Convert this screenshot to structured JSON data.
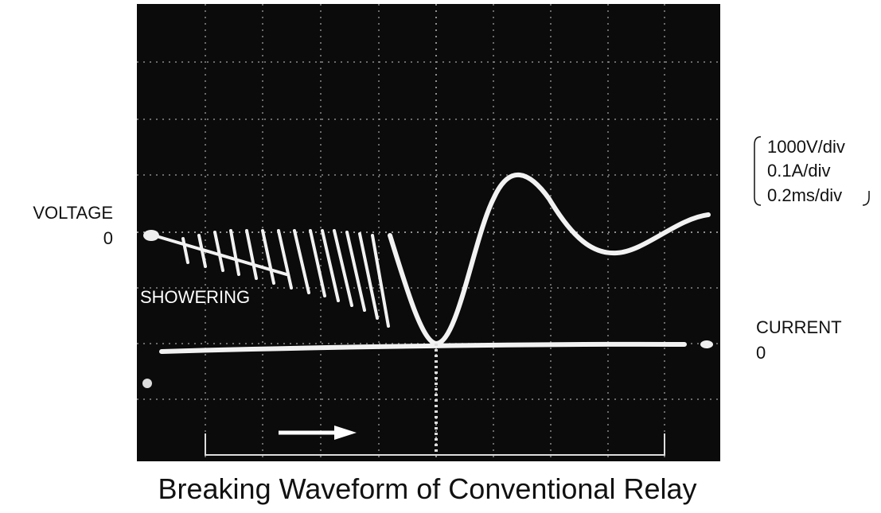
{
  "labels": {
    "voltage": "VOLTAGE",
    "voltage_zero": "0",
    "showering": "SHOWERING",
    "current": "CURRENT",
    "current_zero": "0"
  },
  "scales": [
    "1000V/div",
    "0.1A/div",
    "0.2ms/div"
  ],
  "caption": "Breaking Waveform of Conventional Relay"
}
